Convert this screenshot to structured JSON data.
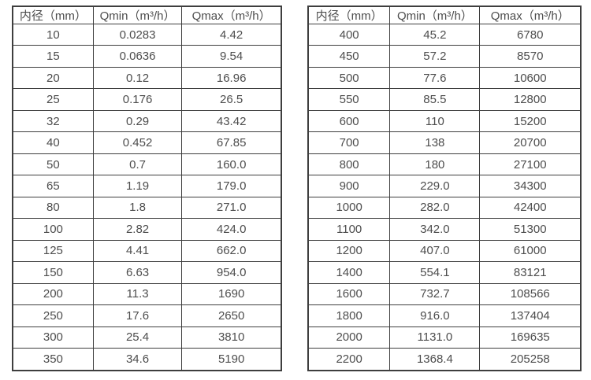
{
  "page": {
    "background_color": "#ffffff",
    "border_color": "#3e3e3e",
    "text_color": "#4d4d4d"
  },
  "tables": [
    {
      "id": "flow-rate-table-left",
      "headers": [
        "内径（mm）",
        "Qmin（m³/h）",
        "Qmax（m³/h）"
      ],
      "rows": [
        [
          "10",
          "0.0283",
          "4.42"
        ],
        [
          "15",
          "0.0636",
          "9.54"
        ],
        [
          "20",
          "0.12",
          "16.96"
        ],
        [
          "25",
          "0.176",
          "26.5"
        ],
        [
          "32",
          "0.29",
          "43.42"
        ],
        [
          "40",
          "0.452",
          "67.85"
        ],
        [
          "50",
          "0.7",
          "160.0"
        ],
        [
          "65",
          "1.19",
          "179.0"
        ],
        [
          "80",
          "1.8",
          "271.0"
        ],
        [
          "100",
          "2.82",
          "424.0"
        ],
        [
          "125",
          "4.41",
          "662.0"
        ],
        [
          "150",
          "6.63",
          "954.0"
        ],
        [
          "200",
          "11.3",
          "1690"
        ],
        [
          "250",
          "17.6",
          "2650"
        ],
        [
          "300",
          "25.4",
          "3810"
        ],
        [
          "350",
          "34.6",
          "5190"
        ]
      ]
    },
    {
      "id": "flow-rate-table-right",
      "headers": [
        "内径（mm）",
        "Qmin（m³/h）",
        "Qmax（m³/h）"
      ],
      "rows": [
        [
          "400",
          "45.2",
          "6780"
        ],
        [
          "450",
          "57.2",
          "8570"
        ],
        [
          "500",
          "77.6",
          "10600"
        ],
        [
          "550",
          "85.5",
          "12800"
        ],
        [
          "600",
          "110",
          "15200"
        ],
        [
          "700",
          "138",
          "20700"
        ],
        [
          "800",
          "180",
          "27100"
        ],
        [
          "900",
          "229.0",
          "34300"
        ],
        [
          "1000",
          "282.0",
          "42400"
        ],
        [
          "1100",
          "342.0",
          "51300"
        ],
        [
          "1200",
          "407.0",
          "61000"
        ],
        [
          "1400",
          "554.1",
          "83121"
        ],
        [
          "1600",
          "732.7",
          "108566"
        ],
        [
          "1800",
          "916.0",
          "137404"
        ],
        [
          "2000",
          "1131.0",
          "169635"
        ],
        [
          "2200",
          "1368.4",
          "205258"
        ]
      ]
    }
  ]
}
